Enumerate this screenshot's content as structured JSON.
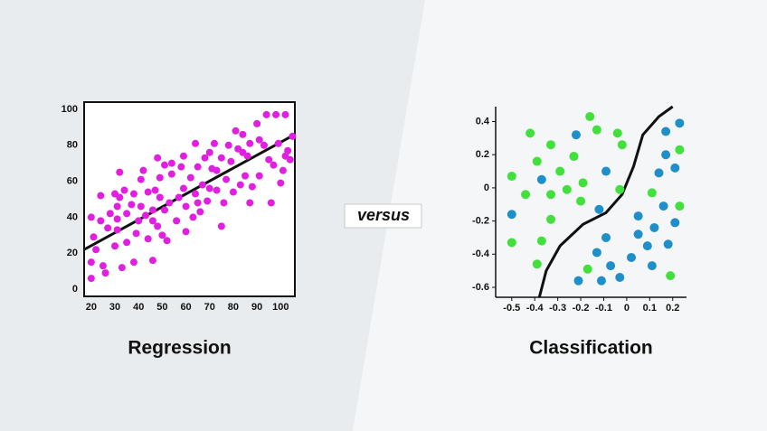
{
  "versus": "versus",
  "chart_data": [
    {
      "type": "scatter",
      "title": "Regression",
      "xlim": [
        17,
        106
      ],
      "ylim": [
        -4,
        104
      ],
      "xticks": [
        20,
        30,
        40,
        50,
        60,
        70,
        80,
        90,
        100
      ],
      "yticks": [
        0,
        20,
        40,
        60,
        80,
        100
      ],
      "series": [
        {
          "color": "#e01fe0",
          "x": [
            20,
            21,
            20,
            20,
            22,
            24,
            24,
            25,
            26,
            27,
            28,
            30,
            30,
            31,
            31,
            31,
            32,
            32,
            33,
            34,
            35,
            35,
            37,
            38,
            38,
            39,
            40,
            41,
            41,
            42,
            43,
            44,
            44,
            46,
            46,
            46,
            47,
            48,
            48,
            49,
            49,
            50,
            51,
            51,
            52,
            53,
            54,
            54,
            56,
            57,
            58,
            59,
            59,
            60,
            60,
            62,
            63,
            64,
            64,
            65,
            65,
            66,
            67,
            68,
            69,
            70,
            70,
            71,
            72,
            73,
            73,
            75,
            75,
            76,
            77,
            78,
            79,
            80,
            81,
            82,
            83,
            84,
            84,
            85,
            86,
            87,
            87,
            88,
            90,
            91,
            91,
            93,
            94,
            95,
            96,
            97,
            98,
            99,
            100,
            101,
            102,
            102,
            103,
            104,
            105
          ],
          "y": [
            40,
            29,
            15,
            6,
            22,
            52,
            38,
            13,
            9,
            34,
            42,
            53,
            24,
            33,
            39,
            46,
            65,
            51,
            12,
            55,
            26,
            42,
            47,
            53,
            15,
            31,
            38,
            61,
            46,
            66,
            41,
            54,
            28,
            38,
            16,
            44,
            55,
            73,
            35,
            62,
            51,
            30,
            69,
            44,
            27,
            48,
            70,
            64,
            38,
            51,
            68,
            56,
            74,
            46,
            32,
            62,
            40,
            53,
            81,
            68,
            48,
            43,
            58,
            73,
            49,
            76,
            56,
            67,
            81,
            66,
            55,
            35,
            73,
            48,
            61,
            80,
            71,
            54,
            88,
            78,
            58,
            76,
            86,
            63,
            74,
            81,
            48,
            57,
            92,
            83,
            63,
            80,
            97,
            72,
            48,
            69,
            97,
            81,
            59,
            66,
            74,
            97,
            77,
            72,
            85
          ]
        }
      ],
      "lines": [
        {
          "color": "#111111",
          "x": [
            17,
            106
          ],
          "y": [
            22,
            86
          ]
        }
      ]
    },
    {
      "type": "scatter",
      "title": "Classification",
      "xlim": [
        -0.57,
        0.26
      ],
      "ylim": [
        -0.66,
        0.49
      ],
      "xticks": [
        -0.5,
        -0.4,
        -0.3,
        -0.2,
        -0.1,
        0,
        0.1,
        0.2
      ],
      "yticks": [
        0.4,
        0.2,
        0,
        -0.2,
        -0.4,
        -0.6
      ],
      "series": [
        {
          "color": "#41e03c",
          "x": [
            -0.42,
            -0.16,
            -0.13,
            -0.04,
            -0.33,
            -0.02,
            -0.5,
            -0.39,
            -0.29,
            -0.23,
            -0.44,
            -0.26,
            -0.19,
            -0.33,
            -0.2,
            -0.03,
            -0.33,
            -0.37,
            -0.5,
            -0.39,
            -0.17,
            0.11,
            0.23,
            0.23,
            0.19
          ],
          "y": [
            0.33,
            0.43,
            0.35,
            0.33,
            0.26,
            0.26,
            0.07,
            0.16,
            0.1,
            0.19,
            -0.04,
            -0.01,
            0.03,
            -0.04,
            -0.08,
            -0.01,
            -0.19,
            -0.32,
            -0.33,
            -0.46,
            -0.49,
            -0.03,
            0.23,
            -0.11,
            -0.53
          ]
        },
        {
          "color": "#1f8fc9",
          "x": [
            -0.22,
            -0.09,
            -0.37,
            -0.5,
            -0.12,
            -0.09,
            -0.13,
            -0.07,
            -0.21,
            -0.11,
            -0.03,
            0.02,
            0.05,
            0.05,
            0.09,
            0.11,
            0.12,
            0.16,
            0.21,
            0.18,
            0.23,
            0.17,
            0.17,
            0.21,
            0.14
          ],
          "y": [
            0.32,
            0.1,
            0.05,
            -0.16,
            -0.13,
            -0.3,
            -0.39,
            -0.47,
            -0.56,
            -0.56,
            -0.54,
            -0.42,
            -0.17,
            -0.28,
            -0.35,
            -0.47,
            -0.24,
            -0.11,
            -0.21,
            -0.34,
            0.39,
            0.34,
            0.2,
            0.12,
            0.09
          ]
        }
      ],
      "lines": [
        {
          "color": "#111111",
          "x": [
            -0.38,
            -0.35,
            -0.29,
            -0.19,
            -0.09,
            -0.02,
            0.03,
            0.07,
            0.14,
            0.2
          ],
          "y": [
            -0.66,
            -0.5,
            -0.35,
            -0.22,
            -0.15,
            -0.04,
            0.13,
            0.32,
            0.43,
            0.49
          ]
        }
      ]
    }
  ]
}
